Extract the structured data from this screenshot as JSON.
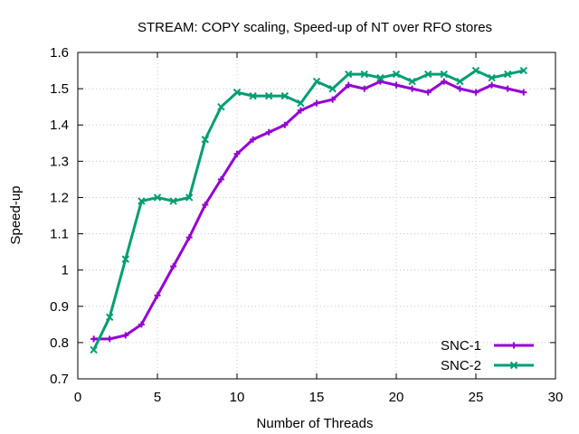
{
  "chart_data": {
    "type": "line",
    "title": "STREAM: COPY scaling, Speed-up of NT over RFO stores",
    "xlabel": "Number of Threads",
    "ylabel": "Speed-up",
    "xlim": [
      0,
      30
    ],
    "ylim": [
      0.7,
      1.6
    ],
    "xticks": [
      0,
      5,
      10,
      15,
      20,
      25,
      30
    ],
    "yticks": [
      0.7,
      0.8,
      0.9,
      1,
      1.1,
      1.2,
      1.3,
      1.4,
      1.5,
      1.6
    ],
    "xtick_labels": [
      "0",
      "5",
      "10",
      "15",
      "20",
      "25",
      "30"
    ],
    "ytick_labels": [
      "0.7",
      "0.8",
      "0.9",
      "1",
      "1.1",
      "1.2",
      "1.3",
      "1.4",
      "1.5",
      "1.6"
    ],
    "grid": true,
    "legend_position": "bottom-right",
    "x": [
      1,
      2,
      3,
      4,
      5,
      6,
      7,
      8,
      9,
      10,
      11,
      12,
      13,
      14,
      15,
      16,
      17,
      18,
      19,
      20,
      21,
      22,
      23,
      24,
      25,
      26,
      27,
      28
    ],
    "series": [
      {
        "name": "SNC-1",
        "color": "#9400d3",
        "marker": "plus",
        "values": [
          0.81,
          0.81,
          0.82,
          0.85,
          0.93,
          1.01,
          1.09,
          1.18,
          1.25,
          1.32,
          1.36,
          1.38,
          1.4,
          1.44,
          1.46,
          1.47,
          1.51,
          1.5,
          1.52,
          1.51,
          1.5,
          1.49,
          1.52,
          1.5,
          1.49,
          1.51,
          1.5,
          1.49
        ]
      },
      {
        "name": "SNC-2",
        "color": "#009e73",
        "marker": "cross",
        "values": [
          0.78,
          0.87,
          1.03,
          1.19,
          1.2,
          1.19,
          1.2,
          1.36,
          1.45,
          1.49,
          1.48,
          1.48,
          1.48,
          1.46,
          1.52,
          1.5,
          1.54,
          1.54,
          1.53,
          1.54,
          1.52,
          1.54,
          1.54,
          1.52,
          1.55,
          1.53,
          1.54,
          1.55
        ]
      }
    ]
  }
}
